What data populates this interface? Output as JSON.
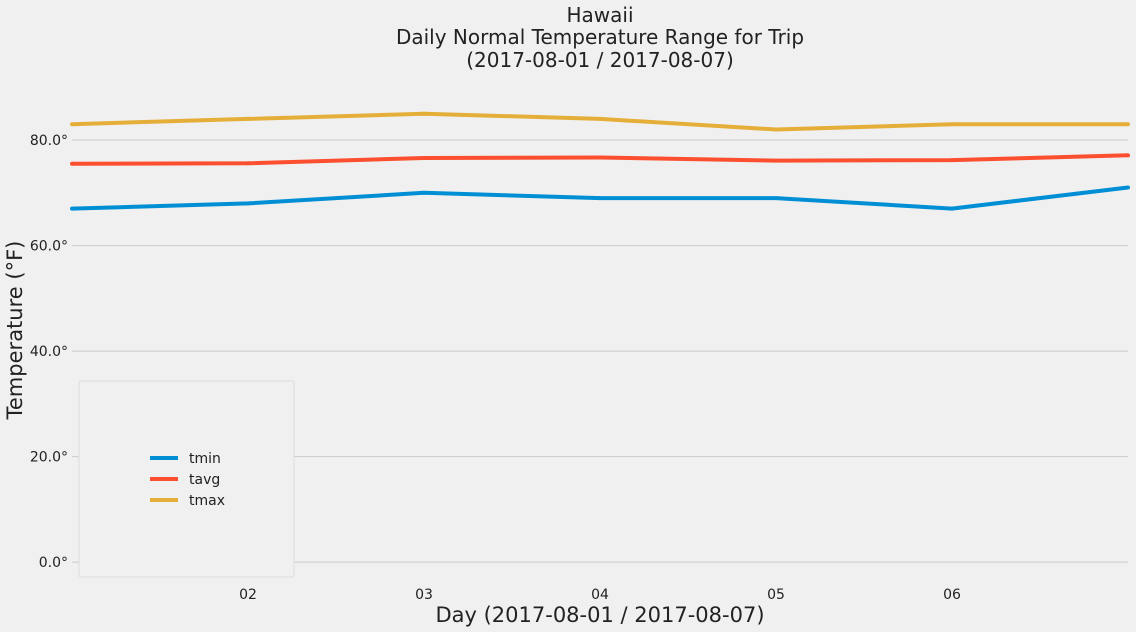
{
  "chart_data": {
    "type": "line",
    "title": "Hawaii",
    "subtitle_lines": [
      "Daily Normal Temperature Range for Trip",
      "(2017-08-01 / 2017-08-07)"
    ],
    "xlabel": "Day (2017-08-01 / 2017-08-07)",
    "ylabel": "Temperature (°F)",
    "x": [
      "2017-08-01",
      "2017-08-02",
      "2017-08-03",
      "2017-08-04",
      "2017-08-05",
      "2017-08-06",
      "2017-08-07"
    ],
    "x_tick_labels": [
      {
        "x": "2017-08-02",
        "label": "02"
      },
      {
        "x": "2017-08-03",
        "label": "03"
      },
      {
        "x": "2017-08-04",
        "label": "04"
      },
      {
        "x": "2017-08-05",
        "label": "05"
      },
      {
        "x": "2017-08-06",
        "label": "06"
      }
    ],
    "y_ticks": [
      {
        "value": 0,
        "label": "0.0°"
      },
      {
        "value": 20,
        "label": "20.0°"
      },
      {
        "value": 40,
        "label": "40.0°"
      },
      {
        "value": 60,
        "label": "60.0°"
      },
      {
        "value": 80,
        "label": "80.0°"
      }
    ],
    "ylim": [
      -3,
      91
    ],
    "grid": "horizontal",
    "legend_position": "lower-left",
    "series": [
      {
        "name": "tmin",
        "color": "#008fd5",
        "values": [
          67.0,
          68.0,
          70.0,
          69.0,
          69.0,
          67.0,
          71.0
        ]
      },
      {
        "name": "tavg",
        "color": "#fc4f30",
        "values": [
          75.5,
          75.6,
          76.6,
          76.7,
          76.1,
          76.2,
          77.1
        ]
      },
      {
        "name": "tmax",
        "color": "#e5ae38",
        "values": [
          83.0,
          84.0,
          85.0,
          84.0,
          82.0,
          83.0,
          83.0
        ]
      }
    ]
  }
}
